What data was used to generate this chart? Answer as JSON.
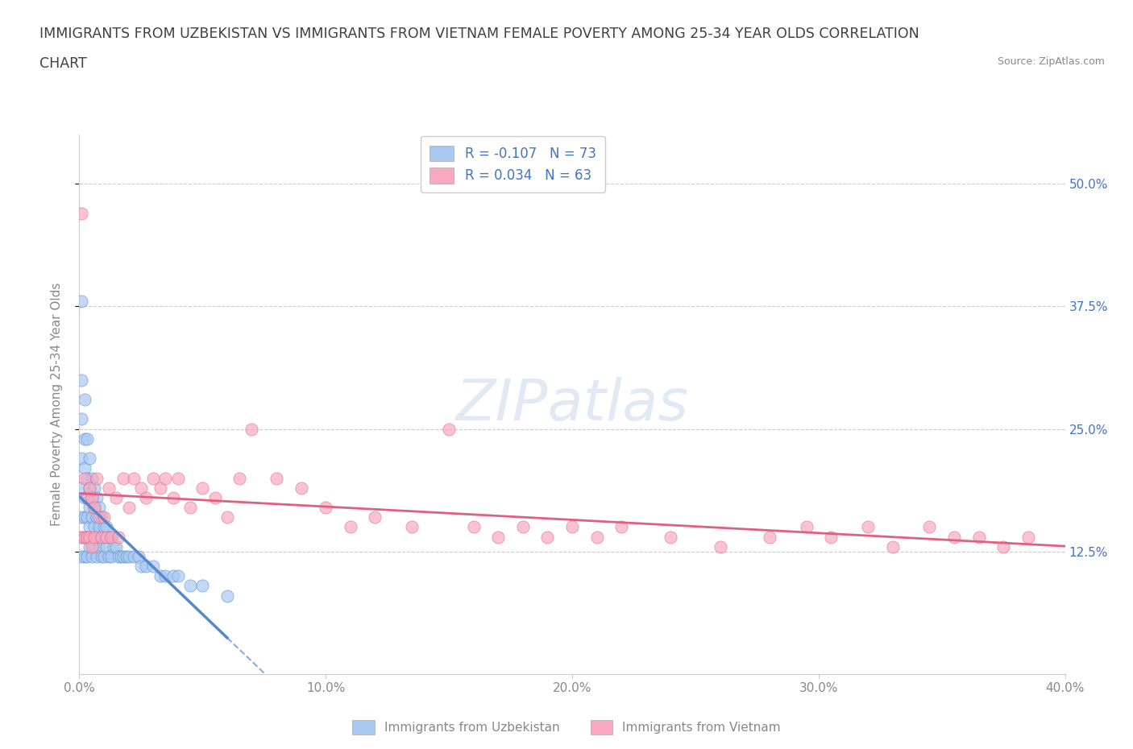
{
  "title_line1": "IMMIGRANTS FROM UZBEKISTAN VS IMMIGRANTS FROM VIETNAM FEMALE POVERTY AMONG 25-34 YEAR OLDS CORRELATION",
  "title_line2": "CHART",
  "source_text": "Source: ZipAtlas.com",
  "ylabel": "Female Poverty Among 25-34 Year Olds",
  "xlim": [
    0.0,
    0.4
  ],
  "ylim": [
    0.0,
    0.55
  ],
  "xtick_labels": [
    "0.0%",
    "10.0%",
    "20.0%",
    "30.0%",
    "40.0%"
  ],
  "xtick_vals": [
    0.0,
    0.1,
    0.2,
    0.3,
    0.4
  ],
  "ytick_labels": [
    "12.5%",
    "25.0%",
    "37.5%",
    "50.0%"
  ],
  "ytick_vals": [
    0.125,
    0.25,
    0.375,
    0.5
  ],
  "watermark": "ZIPatlas",
  "legend_R1": "R = -0.107",
  "legend_N1": "N = 73",
  "legend_R2": "R = 0.034",
  "legend_N2": "N = 63",
  "color_uzbekistan": "#a8c8f0",
  "color_vietnam": "#f8a8c0",
  "color_uzbekistan_line": "#5588cc",
  "color_vietnam_line": "#e06080",
  "color_title": "#404040",
  "color_axis": "#888888",
  "color_right_axis": "#4472c4",
  "uzbekistan_x": [
    0.001,
    0.001,
    0.001,
    0.001,
    0.001,
    0.001,
    0.001,
    0.001,
    0.002,
    0.002,
    0.002,
    0.002,
    0.002,
    0.002,
    0.002,
    0.003,
    0.003,
    0.003,
    0.003,
    0.003,
    0.003,
    0.004,
    0.004,
    0.004,
    0.004,
    0.004,
    0.005,
    0.005,
    0.005,
    0.005,
    0.005,
    0.006,
    0.006,
    0.006,
    0.006,
    0.007,
    0.007,
    0.007,
    0.007,
    0.008,
    0.008,
    0.008,
    0.009,
    0.009,
    0.009,
    0.01,
    0.01,
    0.01,
    0.011,
    0.011,
    0.012,
    0.012,
    0.013,
    0.013,
    0.014,
    0.015,
    0.016,
    0.017,
    0.018,
    0.019,
    0.02,
    0.022,
    0.024,
    0.025,
    0.027,
    0.03,
    0.033,
    0.035,
    0.038,
    0.04,
    0.045,
    0.05,
    0.06
  ],
  "uzbekistan_y": [
    0.38,
    0.3,
    0.26,
    0.22,
    0.19,
    0.16,
    0.14,
    0.12,
    0.28,
    0.24,
    0.21,
    0.18,
    0.16,
    0.14,
    0.12,
    0.24,
    0.2,
    0.18,
    0.16,
    0.14,
    0.12,
    0.22,
    0.19,
    0.17,
    0.15,
    0.13,
    0.2,
    0.18,
    0.16,
    0.14,
    0.12,
    0.19,
    0.17,
    0.15,
    0.13,
    0.18,
    0.16,
    0.14,
    0.12,
    0.17,
    0.15,
    0.13,
    0.16,
    0.14,
    0.12,
    0.15,
    0.14,
    0.12,
    0.15,
    0.13,
    0.14,
    0.12,
    0.14,
    0.12,
    0.13,
    0.13,
    0.12,
    0.12,
    0.12,
    0.12,
    0.12,
    0.12,
    0.12,
    0.11,
    0.11,
    0.11,
    0.1,
    0.1,
    0.1,
    0.1,
    0.09,
    0.09,
    0.08
  ],
  "vietnam_x": [
    0.001,
    0.001,
    0.002,
    0.002,
    0.003,
    0.003,
    0.004,
    0.004,
    0.005,
    0.005,
    0.006,
    0.006,
    0.007,
    0.008,
    0.009,
    0.01,
    0.011,
    0.012,
    0.013,
    0.015,
    0.016,
    0.018,
    0.02,
    0.022,
    0.025,
    0.027,
    0.03,
    0.033,
    0.035,
    0.038,
    0.04,
    0.045,
    0.05,
    0.055,
    0.06,
    0.065,
    0.07,
    0.08,
    0.09,
    0.1,
    0.11,
    0.12,
    0.135,
    0.15,
    0.16,
    0.17,
    0.18,
    0.19,
    0.2,
    0.21,
    0.22,
    0.24,
    0.26,
    0.28,
    0.295,
    0.305,
    0.32,
    0.33,
    0.345,
    0.355,
    0.365,
    0.375,
    0.385
  ],
  "vietnam_y": [
    0.47,
    0.14,
    0.2,
    0.14,
    0.18,
    0.14,
    0.19,
    0.14,
    0.18,
    0.13,
    0.17,
    0.14,
    0.2,
    0.16,
    0.14,
    0.16,
    0.14,
    0.19,
    0.14,
    0.18,
    0.14,
    0.2,
    0.17,
    0.2,
    0.19,
    0.18,
    0.2,
    0.19,
    0.2,
    0.18,
    0.2,
    0.17,
    0.19,
    0.18,
    0.16,
    0.2,
    0.25,
    0.2,
    0.19,
    0.17,
    0.15,
    0.16,
    0.15,
    0.25,
    0.15,
    0.14,
    0.15,
    0.14,
    0.15,
    0.14,
    0.15,
    0.14,
    0.13,
    0.14,
    0.15,
    0.14,
    0.15,
    0.13,
    0.15,
    0.14,
    0.14,
    0.13,
    0.14
  ],
  "title_fontsize": 12.5,
  "axis_label_fontsize": 11,
  "tick_fontsize": 11,
  "legend_fontsize": 12,
  "watermark_fontsize": 52,
  "background_color": "#ffffff",
  "grid_color": "#cccccc"
}
